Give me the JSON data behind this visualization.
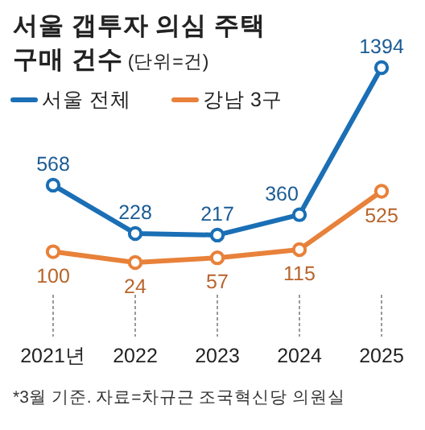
{
  "chart_data": {
    "type": "line",
    "title": "서울 갭투자 의심 주택 구매 건수",
    "subtitle": "(단위=건)",
    "categories": [
      "2021년",
      "2022",
      "2023",
      "2024",
      "2025"
    ],
    "series": [
      {
        "name": "서울 전체",
        "color": "#1a6fb5",
        "values": [
          568,
          228,
          217,
          360,
          1394
        ]
      },
      {
        "name": "강남 3구",
        "color": "#e8813a",
        "values": [
          100,
          24,
          57,
          115,
          525
        ]
      }
    ],
    "tick_labels": "x",
    "legend": "top left",
    "marker": "circle",
    "line_style": "solid",
    "data_labels": true,
    "annotations": [
      "*3월 기준. 자료=차규근 조국혁신당 의원실"
    ]
  }
}
